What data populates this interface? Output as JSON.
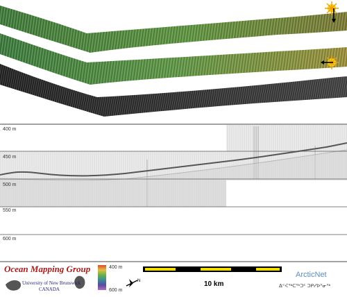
{
  "depth_labels": [
    "400 m",
    "450 m",
    "500 m",
    "550 m",
    "600 m"
  ],
  "depth_values_m": [
    400,
    450,
    500,
    550,
    600
  ],
  "legend": {
    "colorbar_top": "400 m",
    "colorbar_bottom": "600 m",
    "scale_label": "10 km"
  },
  "logos": {
    "ocean_mapping": {
      "title": "Ocean Mapping Group",
      "line1": "University of New Brunswick",
      "line2": "CANADA"
    },
    "arcticnet": {
      "name": "ArcticNet",
      "syllabics": "ᐃᑉᐹᖅᑕᖅᑐᑦ ᑐᑭᓯᐅᕐᓂᖅ"
    }
  },
  "colors": {
    "swath_green": "#5f8a3a",
    "swath_olive": "#8a8a3a",
    "swath_dark": "#2a2a2a",
    "scale_yellow": "#f0dc00",
    "scale_black": "#000000",
    "omg_red": "#a81c1c",
    "arctic_blue": "#5a8fc0"
  },
  "icons": [
    "sun-marker-icon",
    "north-arrow-icon",
    "compass-icon"
  ]
}
